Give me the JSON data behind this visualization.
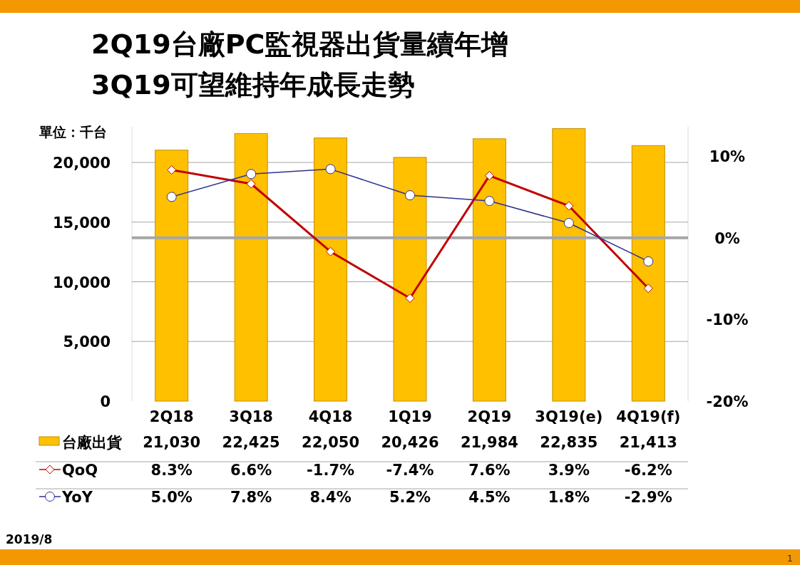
{
  "chart_data": {
    "type": "bar",
    "title": "2Q19台廠PC監視器出貨量續年增",
    "subtitle": "3Q19可望維持年成長走勢",
    "ylabel": "單位：千台",
    "categories": [
      "2Q18",
      "3Q18",
      "4Q18",
      "1Q19",
      "2Q19",
      "3Q19(e)",
      "4Q19(f)"
    ],
    "series": [
      {
        "name": "台廠出貨",
        "color": "#ffc000",
        "values": [
          21030,
          22425,
          22050,
          20426,
          21984,
          22835,
          21413
        ],
        "value_labels": [
          "21,030",
          "22,425",
          "22,050",
          "20,426",
          "21,984",
          "22,835",
          "21,413"
        ]
      },
      {
        "name": "QoQ",
        "type": "line",
        "axis": "y2",
        "color": "#c00000",
        "marker": "diamond",
        "values": [
          8.3,
          6.6,
          -1.7,
          -7.4,
          7.6,
          3.9,
          -6.2
        ],
        "value_labels": [
          "8.3%",
          "6.6%",
          "-1.7%",
          "-7.4%",
          "7.6%",
          "3.9%",
          "-6.2%"
        ]
      },
      {
        "name": "YoY",
        "type": "line",
        "axis": "y2",
        "color": "#2e3192",
        "marker": "circle",
        "values": [
          5.0,
          7.8,
          8.4,
          5.2,
          4.5,
          1.8,
          -2.9
        ],
        "value_labels": [
          "5.0%",
          "7.8%",
          "8.4%",
          "5.2%",
          "4.5%",
          "1.8%",
          "-2.9%"
        ]
      }
    ],
    "ylim": [
      0,
      23000
    ],
    "yticks": [
      {
        "value": 0,
        "label": "0"
      },
      {
        "value": 5000,
        "label": "5,000"
      },
      {
        "value": 10000,
        "label": "10,000"
      },
      {
        "value": 15000,
        "label": "15,000"
      },
      {
        "value": 20000,
        "label": "20,000"
      }
    ],
    "y2lim": [
      -20,
      13.6
    ],
    "y2ticks": [
      {
        "value": -20,
        "label": "-20%"
      },
      {
        "value": -10,
        "label": "-10%"
      },
      {
        "value": 0,
        "label": "0%"
      },
      {
        "value": 10,
        "label": "10%"
      }
    ],
    "grid": "y",
    "legend": "bottom",
    "ref_lines": [
      {
        "axis": "y2",
        "value": 0,
        "color": "#a6a6a6"
      }
    ],
    "annotations": [
      "2019/8",
      "1"
    ]
  }
}
